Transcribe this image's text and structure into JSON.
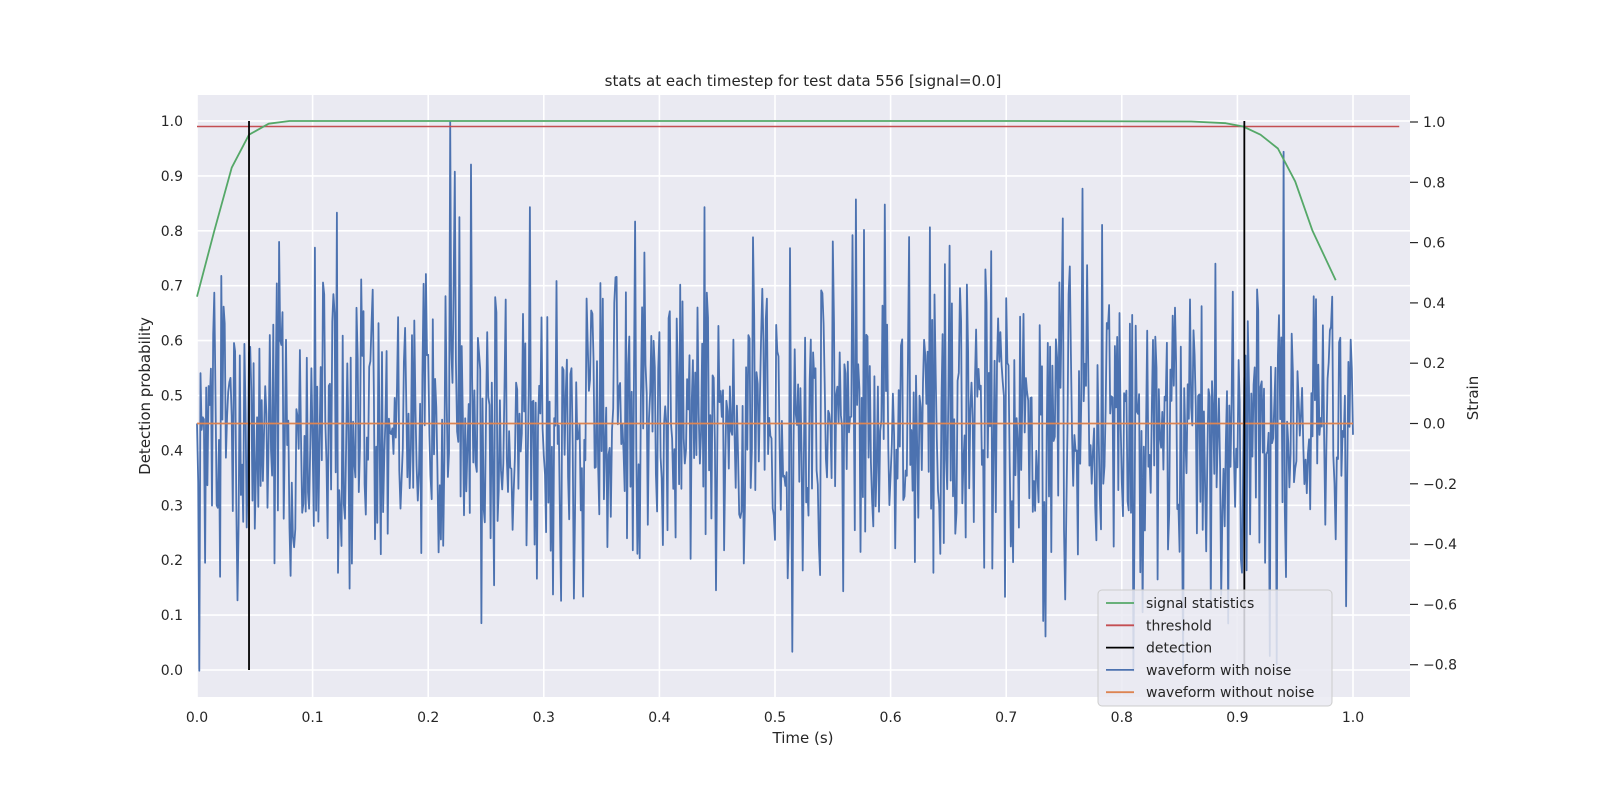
{
  "chart_data": {
    "type": "line",
    "title": "stats at each timestep for test data 556 [signal=0.0]",
    "xlabel": "Time (s)",
    "ylabel": "Detection probability",
    "y2label": "Strain",
    "xlim": [
      0.0,
      1.05
    ],
    "ylim": [
      -0.05,
      1.05
    ],
    "y2lim": [
      -0.9,
      1.07
    ],
    "xticks": [
      "0.0",
      "0.1",
      "0.2",
      "0.3",
      "0.4",
      "0.5",
      "0.6",
      "0.7",
      "0.8",
      "0.9",
      "1.0"
    ],
    "yticks": [
      "0.0",
      "0.1",
      "0.2",
      "0.3",
      "0.4",
      "0.5",
      "0.6",
      "0.7",
      "0.8",
      "0.9",
      "1.0"
    ],
    "y2ticks": [
      "−0.8",
      "−0.6",
      "−0.4",
      "−0.2",
      "0.0",
      "0.2",
      "0.4",
      "0.6",
      "0.8",
      "1.0"
    ],
    "grid": true,
    "legend_position": "lower-right",
    "background": "#eaeaf2",
    "series": [
      {
        "name": "signal statistics",
        "axis": "left",
        "color": "#55a868",
        "x": [
          0.0,
          0.015,
          0.03,
          0.045,
          0.062,
          0.08,
          0.1,
          0.3,
          0.5,
          0.7,
          0.86,
          0.89,
          0.905,
          0.92,
          0.935,
          0.95,
          0.965,
          0.985
        ],
        "y": [
          0.68,
          0.8,
          0.915,
          0.975,
          0.995,
          1.0,
          1.0,
          1.0,
          1.0,
          1.0,
          0.999,
          0.996,
          0.99,
          0.975,
          0.95,
          0.89,
          0.8,
          0.71
        ]
      },
      {
        "name": "threshold",
        "axis": "left",
        "color": "#c44e52",
        "x": [
          0.0,
          1.04
        ],
        "y": [
          0.99,
          0.99
        ]
      },
      {
        "name": "detection",
        "axis": "left",
        "color": "#000000",
        "events_x": [
          0.045,
          0.906
        ],
        "y": [
          0.0,
          1.0
        ]
      },
      {
        "name": "waveform with noise",
        "axis": "right",
        "color": "#4c72b0",
        "description_values": "noise, 1000 samples",
        "x_range": [
          0.0,
          1.0
        ],
        "y_range": [
          -0.82,
          1.0
        ]
      },
      {
        "name": "waveform without noise",
        "axis": "right",
        "color": "#dd8452",
        "x": [
          0.0,
          1.0
        ],
        "y": [
          0.0,
          0.0
        ]
      }
    ]
  }
}
